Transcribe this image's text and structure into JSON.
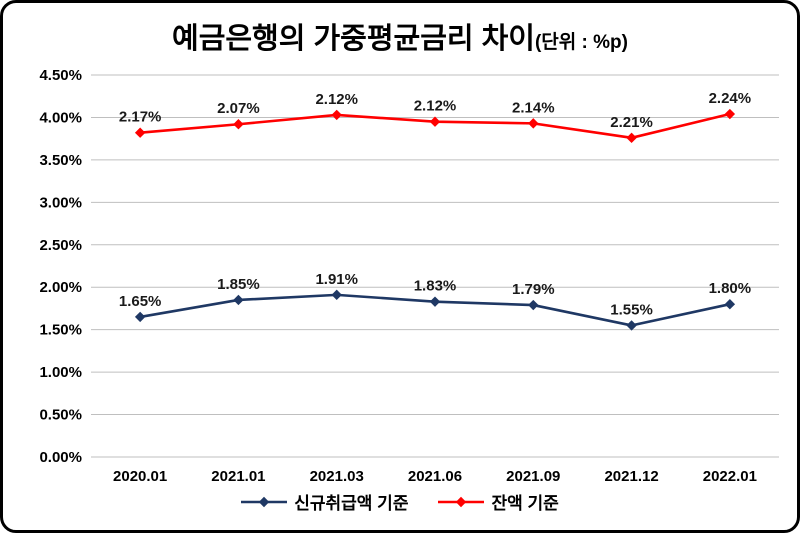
{
  "title": {
    "main": "예금은행의 가중평균금리 차이",
    "unit": "(단위 : %p)"
  },
  "colors": {
    "grid": "#BFBFBF",
    "series_new": "#1F3864",
    "series_balance": "#FF0000",
    "text": "#000000",
    "frame_border": "#000000",
    "background": "#FFFFFF"
  },
  "chart_data": {
    "type": "line",
    "title": "예금은행의 가중평균금리 차이 (단위 : %p)",
    "categories": [
      "2020.01",
      "2021.01",
      "2021.03",
      "2021.06",
      "2021.09",
      "2021.12",
      "2022.01"
    ],
    "series": [
      {
        "name": "신규취급액 기준",
        "color": "#1F3864",
        "values": [
          1.65,
          1.85,
          1.91,
          1.83,
          1.79,
          1.55,
          1.8
        ],
        "point_labels": [
          "1.65%",
          "1.85%",
          "1.91%",
          "1.83%",
          "1.79%",
          "1.55%",
          "1.80%"
        ]
      },
      {
        "name": "잔액 기준",
        "color": "#FF0000",
        "values": [
          3.82,
          3.92,
          4.03,
          3.95,
          3.93,
          3.76,
          4.04
        ],
        "point_labels": [
          "2.17%",
          "2.07%",
          "2.12%",
          "2.12%",
          "2.14%",
          "2.21%",
          "2.24%"
        ]
      }
    ],
    "ylim": [
      0,
      4.5
    ],
    "ytick_step": 0.5,
    "ytick_labels": [
      "0.00%",
      "0.50%",
      "1.00%",
      "1.50%",
      "2.00%",
      "2.50%",
      "3.00%",
      "3.50%",
      "4.00%",
      "4.50%"
    ],
    "grid": true,
    "legend_position": "bottom",
    "marker": "diamond"
  }
}
